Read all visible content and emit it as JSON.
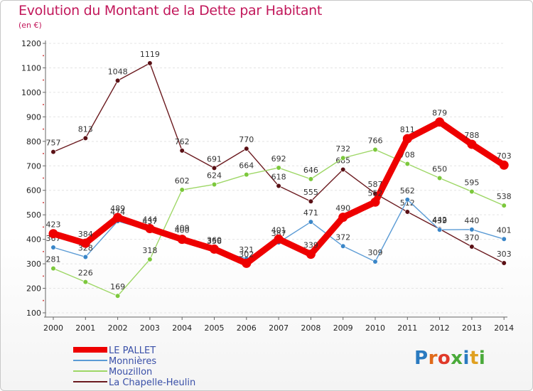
{
  "title": "Evolution du Montant de la Dette par Habitant",
  "subtitle": "(en €)",
  "logo_text": "Proxiti",
  "colors": {
    "title": "#c2185b",
    "axis": "#666666",
    "tick_label": "#222222",
    "grid": "#e4e4e4"
  },
  "chart_data": {
    "type": "line",
    "x": [
      "2000",
      "2001",
      "2002",
      "2003",
      "2004",
      "2005",
      "2006",
      "2007",
      "2008",
      "2009",
      "2010",
      "2011",
      "2012",
      "2013",
      "2014"
    ],
    "ylim": [
      100,
      1200
    ],
    "yticks": [
      100,
      200,
      300,
      400,
      500,
      600,
      700,
      800,
      900,
      1000,
      1100,
      1200
    ],
    "grid": "horizontal dashed",
    "legend_position": "bottom-left",
    "series": [
      {
        "name": "La Chapelle-Heulin",
        "color": "#6b1a1f",
        "marker": "#5a1015",
        "values": [
          757,
          813,
          1048,
          1119,
          762,
          691,
          770,
          618,
          555,
          685,
          587,
          512,
          442,
          370,
          303
        ],
        "labels": [
          "757",
          "813",
          "1048",
          "1119",
          "762",
          "691",
          "770",
          "618",
          "555",
          "685",
          "587",
          "512",
          "442",
          "370",
          "303"
        ]
      },
      {
        "name": "Mouzillon",
        "color": "#9ed766",
        "marker": "#7cc83c",
        "values": [
          281,
          226,
          169,
          318,
          602,
          624,
          664,
          692,
          646,
          732,
          766,
          708,
          650,
          595,
          538
        ],
        "labels": [
          "281",
          "226",
          "169",
          "318",
          "602",
          "624",
          "664",
          "692",
          "646",
          "732",
          "766",
          "708",
          "650",
          "595",
          "538"
        ]
      },
      {
        "name": "Monnières",
        "color": "#5b9bd5",
        "marker": "#3a86c8",
        "values": [
          367,
          328,
          474,
          437,
          409,
          356,
          321,
          387,
          471,
          372,
          309,
          562,
          439,
          440,
          401
        ],
        "labels": [
          "367",
          "328",
          "474",
          "437",
          "409",
          "356",
          "321",
          "387",
          "471",
          "372",
          "309",
          "562",
          "439",
          "440",
          "401"
        ]
      },
      {
        "name": "LE PALLET",
        "color": "#ee0000",
        "marker": "#ee0000",
        "values": [
          423,
          384,
          489,
          444,
          400,
          360,
          302,
          401,
          339,
          490,
          552,
          811,
          879,
          788,
          703
        ],
        "labels": [
          "423",
          "384",
          "489",
          "444",
          "400",
          "360",
          "302",
          "401",
          "339",
          "490",
          "552",
          "811",
          "879",
          "788",
          "703"
        ]
      }
    ],
    "legend": [
      "LE PALLET",
      "Monnières",
      "Mouzillon",
      "La Chapelle-Heulin"
    ]
  }
}
